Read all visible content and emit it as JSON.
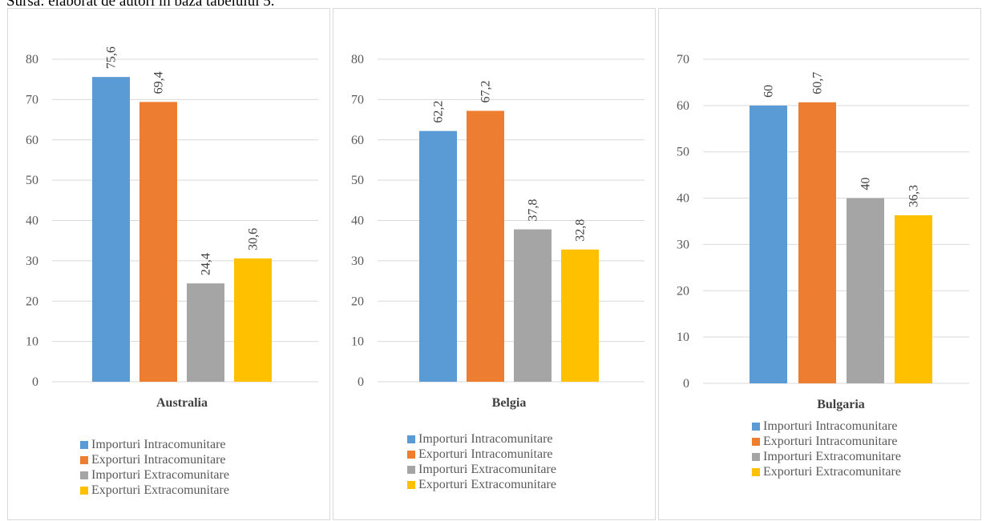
{
  "source_caption": "Sursa: elaborat de autori în baza tabelului 5.",
  "legend": [
    "Importuri Intracomunitare",
    "Exporturi Intracomunitare",
    "Importuri Extracomunitare",
    "Exporturi Extracomunitare"
  ],
  "colors": [
    "#5b9bd5",
    "#ed7d31",
    "#a5a5a5",
    "#ffc000"
  ],
  "chart_data": [
    {
      "type": "bar",
      "categories": [
        "Australia"
      ],
      "series": [
        {
          "name": "Importuri Intracomunitare",
          "values": [
            75.6
          ],
          "label": "75,6"
        },
        {
          "name": "Exporturi Intracomunitare",
          "values": [
            69.4
          ],
          "label": "69,4"
        },
        {
          "name": "Importuri Extracomunitare",
          "values": [
            24.4
          ],
          "label": "24,4"
        },
        {
          "name": "Exporturi Extracomunitare",
          "values": [
            30.6
          ],
          "label": "30,6"
        }
      ],
      "ylim": [
        0,
        80
      ],
      "yticks": [
        0,
        10,
        20,
        30,
        40,
        50,
        60,
        70,
        80
      ],
      "grid": true,
      "legend_position": "bottom"
    },
    {
      "type": "bar",
      "categories": [
        "Belgia"
      ],
      "series": [
        {
          "name": "Importuri Intracomunitare",
          "values": [
            62.2
          ],
          "label": "62,2"
        },
        {
          "name": "Exporturi Intracomunitare",
          "values": [
            67.2
          ],
          "label": "67,2"
        },
        {
          "name": "Importuri Extracomunitare",
          "values": [
            37.8
          ],
          "label": "37,8"
        },
        {
          "name": "Exporturi Extracomunitare",
          "values": [
            32.8
          ],
          "label": "32,8"
        }
      ],
      "ylim": [
        0,
        80
      ],
      "yticks": [
        0,
        10,
        20,
        30,
        40,
        50,
        60,
        70,
        80
      ],
      "grid": true,
      "legend_position": "bottom"
    },
    {
      "type": "bar",
      "categories": [
        "Bulgaria"
      ],
      "series": [
        {
          "name": "Importuri Intracomunitare",
          "values": [
            60
          ],
          "label": "60"
        },
        {
          "name": "Exporturi Intracomunitare",
          "values": [
            60.7
          ],
          "label": "60,7"
        },
        {
          "name": "Importuri Extracomunitare",
          "values": [
            40
          ],
          "label": "40"
        },
        {
          "name": "Exporturi Extracomunitare",
          "values": [
            36.3
          ],
          "label": "36,3"
        }
      ],
      "ylim": [
        0,
        70
      ],
      "yticks": [
        0,
        10,
        20,
        30,
        40,
        50,
        60,
        70
      ],
      "grid": true,
      "legend_position": "bottom"
    }
  ]
}
